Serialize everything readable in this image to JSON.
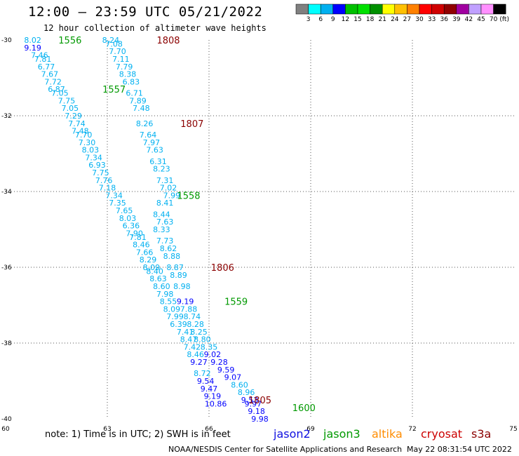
{
  "header": {
    "title": "12:00 – 23:59 UTC 05/21/2022",
    "subtitle": "12 hour collection of altimeter wave heights"
  },
  "footer": {
    "note": "note: 1) Time is in UTC; 2) SWH is in feet",
    "credit": "NOAA/NESDIS Center for Satellite Applications and Research",
    "timestamp": "May 22 08:31:54 UTC 2022"
  },
  "missions": [
    {
      "name": "jason2",
      "color": "#1010e0"
    },
    {
      "name": "jason3",
      "color": "#009900"
    },
    {
      "name": "altika",
      "color": "#ff8c00"
    },
    {
      "name": "cryosat",
      "color": "#cc0000"
    },
    {
      "name": "s3a",
      "color": "#8b0000"
    }
  ],
  "chart_data": {
    "type": "scatter",
    "title": "12:00 – 23:59 UTC 05/21/2022",
    "subtitle": "12 hour collection of altimeter wave heights",
    "xlim": [
      60,
      75
    ],
    "ylim": [
      -40,
      -30
    ],
    "x_ticks": [
      60,
      63,
      66,
      69,
      72,
      75
    ],
    "y_ticks": [
      -30,
      -32,
      -34,
      -36,
      -38,
      -40
    ],
    "grid": true,
    "units": "(ft)",
    "color_scale": {
      "labels": [
        "3",
        "6",
        "9",
        "12",
        "15",
        "18",
        "21",
        "24",
        "27",
        "30",
        "33",
        "36",
        "39",
        "42",
        "45",
        "70"
      ],
      "colors": [
        "#808080",
        "#00ffff",
        "#00b0f0",
        "#0000ff",
        "#00c000",
        "#00e000",
        "#009000",
        "#ffff00",
        "#ffc000",
        "#ff8000",
        "#ff0000",
        "#d00000",
        "#900000",
        "#a000a0",
        "#c0a0ff",
        "#ff90ff",
        "#000000"
      ]
    },
    "points": [
      {
        "x": 60.8,
        "y": -30.0,
        "v": "8.02",
        "c": "#00b0f0"
      },
      {
        "x": 60.8,
        "y": -30.2,
        "v": "9.19",
        "c": "#0000ff"
      },
      {
        "x": 61.0,
        "y": -30.4,
        "v": "7.46",
        "c": "#00b0f0"
      },
      {
        "x": 61.1,
        "y": -30.5,
        "v": "7.81",
        "c": "#00b0f0"
      },
      {
        "x": 61.2,
        "y": -30.7,
        "v": "6.77",
        "c": "#00b0f0"
      },
      {
        "x": 61.3,
        "y": -30.9,
        "v": "7.67",
        "c": "#00b0f0"
      },
      {
        "x": 61.4,
        "y": -31.1,
        "v": "7.72",
        "c": "#00b0f0"
      },
      {
        "x": 61.5,
        "y": -31.3,
        "v": "6.87",
        "c": "#00b0f0"
      },
      {
        "x": 61.6,
        "y": -31.4,
        "v": "7.05",
        "c": "#00b0f0"
      },
      {
        "x": 61.8,
        "y": -31.6,
        "v": "7.75",
        "c": "#00b0f0"
      },
      {
        "x": 61.9,
        "y": -31.8,
        "v": "7.05",
        "c": "#00b0f0"
      },
      {
        "x": 62.0,
        "y": -32.0,
        "v": "7.29",
        "c": "#00b0f0"
      },
      {
        "x": 62.1,
        "y": -32.2,
        "v": "7.74",
        "c": "#00b0f0"
      },
      {
        "x": 62.2,
        "y": -32.4,
        "v": "7.48",
        "c": "#00b0f0"
      },
      {
        "x": 62.3,
        "y": -32.5,
        "v": "7.70",
        "c": "#00b0f0"
      },
      {
        "x": 62.4,
        "y": -32.7,
        "v": "7.30",
        "c": "#00b0f0"
      },
      {
        "x": 62.5,
        "y": -32.9,
        "v": "8.03",
        "c": "#00b0f0"
      },
      {
        "x": 62.6,
        "y": -33.1,
        "v": "7.34",
        "c": "#00b0f0"
      },
      {
        "x": 62.7,
        "y": -33.3,
        "v": "6.93",
        "c": "#00b0f0"
      },
      {
        "x": 62.8,
        "y": -33.5,
        "v": "7.75",
        "c": "#00b0f0"
      },
      {
        "x": 62.9,
        "y": -33.7,
        "v": "7.76",
        "c": "#00b0f0"
      },
      {
        "x": 63.0,
        "y": -33.9,
        "v": "7.18",
        "c": "#00b0f0"
      },
      {
        "x": 63.2,
        "y": -34.1,
        "v": "7.34",
        "c": "#00b0f0"
      },
      {
        "x": 63.3,
        "y": -34.3,
        "v": "7.35",
        "c": "#00b0f0"
      },
      {
        "x": 63.5,
        "y": -34.5,
        "v": "7.65",
        "c": "#00b0f0"
      },
      {
        "x": 63.6,
        "y": -34.7,
        "v": "8.03",
        "c": "#00b0f0"
      },
      {
        "x": 63.7,
        "y": -34.9,
        "v": "6.36",
        "c": "#00b0f0"
      },
      {
        "x": 63.8,
        "y": -35.1,
        "v": "7.90",
        "c": "#00b0f0"
      },
      {
        "x": 63.9,
        "y": -35.2,
        "v": "7.81",
        "c": "#00b0f0"
      },
      {
        "x": 64.0,
        "y": -35.4,
        "v": "8.46",
        "c": "#00b0f0"
      },
      {
        "x": 64.1,
        "y": -35.6,
        "v": "7.66",
        "c": "#00b0f0"
      },
      {
        "x": 64.2,
        "y": -35.8,
        "v": "8.29",
        "c": "#00b0f0"
      },
      {
        "x": 64.3,
        "y": -36.0,
        "v": "8.09",
        "c": "#00b0f0"
      },
      {
        "x": 64.4,
        "y": -36.1,
        "v": "8.40",
        "c": "#00b0f0"
      },
      {
        "x": 64.5,
        "y": -36.3,
        "v": "8.63",
        "c": "#00b0f0"
      },
      {
        "x": 64.6,
        "y": -36.5,
        "v": "8.60",
        "c": "#00b0f0"
      },
      {
        "x": 64.7,
        "y": -36.7,
        "v": "7.98",
        "c": "#00b0f0"
      },
      {
        "x": 64.8,
        "y": -36.9,
        "v": "8.55",
        "c": "#00b0f0"
      },
      {
        "x": 64.9,
        "y": -37.1,
        "v": "8.09",
        "c": "#00b0f0"
      },
      {
        "x": 65.0,
        "y": -37.3,
        "v": "7.99",
        "c": "#00b0f0"
      },
      {
        "x": 65.1,
        "y": -37.5,
        "v": "6.39",
        "c": "#00b0f0"
      },
      {
        "x": 65.3,
        "y": -37.7,
        "v": "7.41",
        "c": "#00b0f0"
      },
      {
        "x": 65.4,
        "y": -37.9,
        "v": "8.47",
        "c": "#00b0f0"
      },
      {
        "x": 65.5,
        "y": -38.1,
        "v": "7.42",
        "c": "#00b0f0"
      },
      {
        "x": 65.6,
        "y": -38.3,
        "v": "8.46",
        "c": "#00b0f0"
      },
      {
        "x": 65.7,
        "y": -38.5,
        "v": "9.27",
        "c": "#0000ff"
      },
      {
        "x": 65.8,
        "y": -38.8,
        "v": "8.72",
        "c": "#00b0f0"
      },
      {
        "x": 65.9,
        "y": -39.0,
        "v": "9.54",
        "c": "#0000ff"
      },
      {
        "x": 66.0,
        "y": -39.2,
        "v": "9.47",
        "c": "#0000ff"
      },
      {
        "x": 66.1,
        "y": -39.4,
        "v": "9.19",
        "c": "#0000ff"
      },
      {
        "x": 66.2,
        "y": -39.6,
        "v": "10.86",
        "c": "#0000ff"
      },
      {
        "x": 63.1,
        "y": -30.0,
        "v": "8.24",
        "c": "#00b0f0"
      },
      {
        "x": 63.2,
        "y": -30.1,
        "v": "7.08",
        "c": "#00b0f0"
      },
      {
        "x": 63.3,
        "y": -30.3,
        "v": "7.70",
        "c": "#00b0f0"
      },
      {
        "x": 63.4,
        "y": -30.5,
        "v": "7.11",
        "c": "#00b0f0"
      },
      {
        "x": 63.5,
        "y": -30.7,
        "v": "7.79",
        "c": "#00b0f0"
      },
      {
        "x": 63.6,
        "y": -30.9,
        "v": "8.38",
        "c": "#00b0f0"
      },
      {
        "x": 63.7,
        "y": -31.1,
        "v": "6.83",
        "c": "#00b0f0"
      },
      {
        "x": 63.8,
        "y": -31.4,
        "v": "6.71",
        "c": "#00b0f0"
      },
      {
        "x": 63.9,
        "y": -31.6,
        "v": "7.89",
        "c": "#00b0f0"
      },
      {
        "x": 64.0,
        "y": -31.8,
        "v": "7.48",
        "c": "#00b0f0"
      },
      {
        "x": 64.1,
        "y": -32.2,
        "v": "8.26",
        "c": "#00b0f0"
      },
      {
        "x": 64.2,
        "y": -32.5,
        "v": "7.64",
        "c": "#00b0f0"
      },
      {
        "x": 64.3,
        "y": -32.7,
        "v": "7.97",
        "c": "#00b0f0"
      },
      {
        "x": 64.4,
        "y": -32.9,
        "v": "7.63",
        "c": "#00b0f0"
      },
      {
        "x": 64.5,
        "y": -33.2,
        "v": "6.31",
        "c": "#00b0f0"
      },
      {
        "x": 64.6,
        "y": -33.4,
        "v": "8.23",
        "c": "#00b0f0"
      },
      {
        "x": 64.7,
        "y": -33.7,
        "v": "7.31",
        "c": "#00b0f0"
      },
      {
        "x": 64.8,
        "y": -33.9,
        "v": "7.02",
        "c": "#00b0f0"
      },
      {
        "x": 64.9,
        "y": -34.1,
        "v": "7.99",
        "c": "#00b0f0"
      },
      {
        "x": 64.7,
        "y": -34.3,
        "v": "8.41",
        "c": "#00b0f0"
      },
      {
        "x": 64.6,
        "y": -34.6,
        "v": "8.44",
        "c": "#00b0f0"
      },
      {
        "x": 64.7,
        "y": -34.8,
        "v": "7.63",
        "c": "#00b0f0"
      },
      {
        "x": 64.6,
        "y": -35.0,
        "v": "8.33",
        "c": "#00b0f0"
      },
      {
        "x": 64.7,
        "y": -35.3,
        "v": "7.73",
        "c": "#00b0f0"
      },
      {
        "x": 64.8,
        "y": -35.5,
        "v": "8.62",
        "c": "#00b0f0"
      },
      {
        "x": 64.9,
        "y": -35.7,
        "v": "8.88",
        "c": "#00b0f0"
      },
      {
        "x": 65.0,
        "y": -36.0,
        "v": "8.87",
        "c": "#00b0f0"
      },
      {
        "x": 65.1,
        "y": -36.2,
        "v": "8.89",
        "c": "#00b0f0"
      },
      {
        "x": 65.2,
        "y": -36.5,
        "v": "8.98",
        "c": "#00b0f0"
      },
      {
        "x": 65.3,
        "y": -36.9,
        "v": "9.19",
        "c": "#0000ff"
      },
      {
        "x": 65.4,
        "y": -37.1,
        "v": "7.88",
        "c": "#00b0f0"
      },
      {
        "x": 65.5,
        "y": -37.3,
        "v": "8.74",
        "c": "#00b0f0"
      },
      {
        "x": 65.6,
        "y": -37.5,
        "v": "8.28",
        "c": "#00b0f0"
      },
      {
        "x": 65.7,
        "y": -37.7,
        "v": "8.25",
        "c": "#00b0f0"
      },
      {
        "x": 65.8,
        "y": -37.9,
        "v": "8.80",
        "c": "#00b0f0"
      },
      {
        "x": 66.0,
        "y": -38.1,
        "v": "8.35",
        "c": "#00b0f0"
      },
      {
        "x": 66.1,
        "y": -38.3,
        "v": "9.02",
        "c": "#0000ff"
      },
      {
        "x": 66.3,
        "y": -38.5,
        "v": "9.28",
        "c": "#0000ff"
      },
      {
        "x": 66.5,
        "y": -38.7,
        "v": "9.59",
        "c": "#0000ff"
      },
      {
        "x": 66.7,
        "y": -38.9,
        "v": "9.07",
        "c": "#0000ff"
      },
      {
        "x": 66.9,
        "y": -39.1,
        "v": "8.60",
        "c": "#00b0f0"
      },
      {
        "x": 67.1,
        "y": -39.3,
        "v": "8.96",
        "c": "#00b0f0"
      },
      {
        "x": 67.2,
        "y": -39.5,
        "v": "9.53",
        "c": "#0000ff"
      },
      {
        "x": 67.3,
        "y": -39.6,
        "v": "9.97",
        "c": "#0000ff"
      },
      {
        "x": 67.4,
        "y": -39.8,
        "v": "9.18",
        "c": "#0000ff"
      },
      {
        "x": 67.5,
        "y": -40.0,
        "v": "9.98",
        "c": "#0000ff"
      }
    ],
    "time_labels": [
      {
        "x": 61.9,
        "y": -30.0,
        "t": "1556",
        "c": "#009900"
      },
      {
        "x": 64.8,
        "y": -30.0,
        "t": "1808",
        "c": "#8b0000"
      },
      {
        "x": 63.2,
        "y": -31.3,
        "t": "1557",
        "c": "#009900"
      },
      {
        "x": 65.5,
        "y": -32.2,
        "t": "1807",
        "c": "#8b0000"
      },
      {
        "x": 65.4,
        "y": -34.1,
        "t": "1558",
        "c": "#009900"
      },
      {
        "x": 66.4,
        "y": -36.0,
        "t": "1806",
        "c": "#8b0000"
      },
      {
        "x": 66.8,
        "y": -36.9,
        "t": "1559",
        "c": "#009900"
      },
      {
        "x": 67.5,
        "y": -39.5,
        "t": "1805",
        "c": "#8b0000"
      },
      {
        "x": 68.8,
        "y": -39.7,
        "t": "1600",
        "c": "#009900"
      }
    ]
  }
}
